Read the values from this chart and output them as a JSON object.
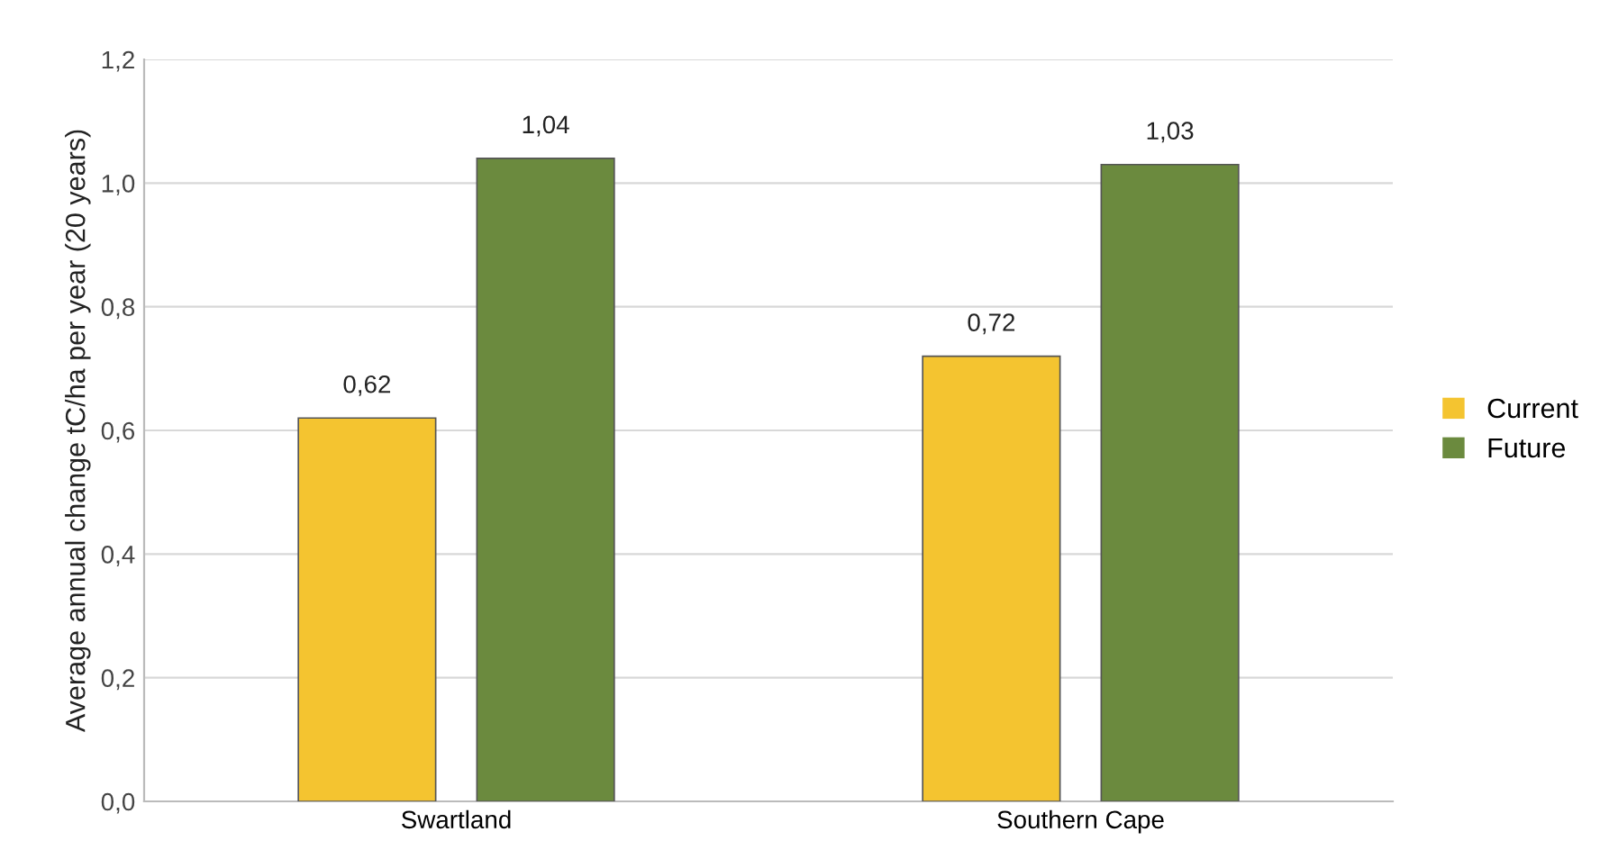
{
  "chart_data": {
    "type": "bar",
    "ylabel": "Average annual change tC/ha per year (20 years)",
    "categories": [
      "Swartland",
      "Southern Cape"
    ],
    "series": [
      {
        "name": "Current",
        "color": "#f4c430",
        "values": [
          0.62,
          0.72
        ],
        "value_labels": [
          "0,62",
          "0,72"
        ]
      },
      {
        "name": "Future",
        "color": "#6b8a3e",
        "values": [
          1.04,
          1.03
        ],
        "value_labels": [
          "1,04",
          "1,03"
        ]
      }
    ],
    "ylim": [
      0,
      1.2
    ],
    "yticks": [
      {
        "value": 0,
        "label": "0,0"
      },
      {
        "value": 0.2,
        "label": "0,2"
      },
      {
        "value": 0.4,
        "label": "0,4"
      },
      {
        "value": 0.6,
        "label": "0,6"
      },
      {
        "value": 0.8,
        "label": "0,8"
      },
      {
        "value": 1.0,
        "label": "1,0"
      },
      {
        "value": 1.2,
        "label": "1,2"
      }
    ],
    "grid": "y",
    "legend": "right"
  }
}
